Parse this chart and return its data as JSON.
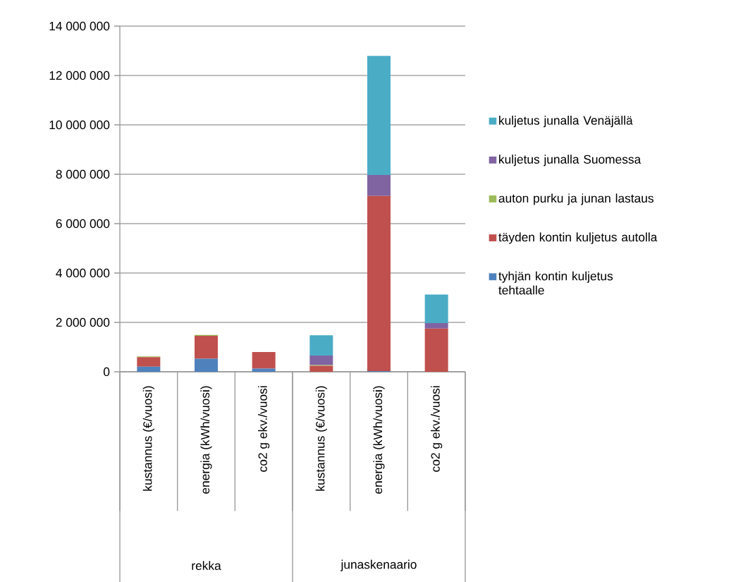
{
  "chart_data": {
    "type": "bar",
    "stacked": true,
    "categories": [
      "kustannus (€/vuosi)",
      "energia (kWh/vuosi)",
      "co2 g ekv./vuosi",
      "kustannus (€/vuosi)",
      "energia (kWh/vuosi)",
      "co2 g ekv./vuosi"
    ],
    "annotations": [
      "rekka",
      "junaskenaario"
    ],
    "series": [
      {
        "name": "tyhjän kontin kuljetus tehtaalle",
        "color": "#4f81bd",
        "values": [
          210000,
          530000,
          130000,
          0,
          30000,
          0
        ]
      },
      {
        "name": "täyden kontin kuljetus autolla",
        "color": "#c0504d",
        "values": [
          380000,
          930000,
          670000,
          240000,
          7090000,
          1750000
        ]
      },
      {
        "name": "auton purku ja junan lastaus",
        "color": "#9bbb59",
        "values": [
          30000,
          30000,
          0,
          30000,
          0,
          0
        ]
      },
      {
        "name": "kuljetus junalla Suomessa",
        "color": "#8064a2",
        "values": [
          0,
          0,
          0,
          390000,
          850000,
          220000
        ]
      },
      {
        "name": "kuljetus junalla Venäjällä",
        "color": "#4bacc6",
        "values": [
          0,
          0,
          0,
          820000,
          4820000,
          1160000
        ]
      }
    ],
    "ylim": [
      0,
      14000000
    ],
    "yticks": [
      0,
      {
        "value": 2000000,
        "label": "2 000 000"
      },
      {
        "value": 4000000,
        "label": "4 000 000"
      },
      {
        "value": 6000000,
        "label": "6 000 000"
      },
      {
        "value": 8000000,
        "label": "8 000 000"
      },
      {
        "value": 10000000,
        "label": "10 000 000"
      },
      {
        "value": 12000000,
        "label": "12 000 000"
      },
      {
        "value": 14000000,
        "label": "14 000 000"
      }
    ],
    "grid": "y",
    "legend": "right"
  }
}
